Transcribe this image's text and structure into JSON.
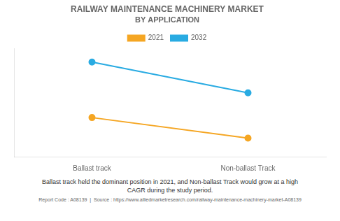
{
  "chart_data": {
    "type": "line",
    "title": "RAILWAY MAINTENANCE MACHINERY MARKET",
    "subtitle": "BY APPLICATION",
    "categories": [
      "Ballast track",
      "Non-ballast Track"
    ],
    "series": [
      {
        "name": "2021",
        "color": "#F5A623",
        "values": [
          0.38,
          0.18
        ]
      },
      {
        "name": "2032",
        "color": "#29ABE2",
        "values": [
          0.92,
          0.62
        ]
      }
    ],
    "ylim": [
      0.0,
      1.05
    ],
    "yticks": [],
    "tick_labels": "x",
    "grid": false,
    "legend": "top",
    "marker": "circle",
    "annotations": [
      "Ballast track held the dominant position in 2021, and Non-ballast Track would grow at a high\nCAGR during the study period.",
      "Report Code : A08139  |  Source : https://www.alliedmarketresearch.com/railway-maintenance-machinery-market-A08139"
    ]
  }
}
